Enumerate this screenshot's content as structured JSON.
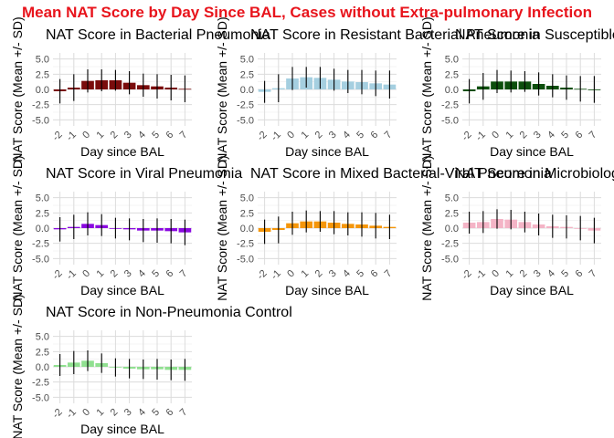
{
  "chart_data": {
    "title": "Mean NAT Score by Day Since BAL, Cases without Extra-pulmonary Infection",
    "title_color": "#e8141c",
    "type": "bar",
    "grid": true,
    "ylim": [
      -6,
      6
    ],
    "yticks": [
      -5,
      -2.5,
      0,
      2.5,
      5
    ],
    "ytick_labels": [
      "-5.0",
      "-2.5",
      "0.0",
      "2.5",
      "5.0"
    ],
    "x": [
      -2,
      -1,
      0,
      1,
      2,
      3,
      4,
      5,
      6,
      7
    ],
    "x_labels": [
      "-2",
      "-1",
      "0",
      "1",
      "2",
      "3",
      "4",
      "5",
      "6",
      "7"
    ],
    "panels": [
      {
        "title": "NAT Score in Bacterial Pneumonia",
        "xlabel": "Day since BAL",
        "ylabel": "NAT Score (Mean +/- SD)",
        "color": "#7a0c0c",
        "values": [
          -0.3,
          0.3,
          1.4,
          1.5,
          1.5,
          1.1,
          0.7,
          0.5,
          0.3,
          0.1
        ],
        "sd": [
          2.0,
          2.2,
          1.9,
          1.8,
          1.7,
          1.9,
          1.9,
          2.0,
          2.1,
          2.2
        ]
      },
      {
        "title": "NAT Score in Resistant Bacterial Pneumonia",
        "xlabel": "Day since BAL",
        "ylabel": "NAT Score (Mean +/- SD)",
        "color": "#a5cfe0",
        "values": [
          -0.4,
          0.2,
          1.8,
          2.0,
          1.9,
          1.6,
          1.3,
          1.2,
          1.0,
          0.8
        ],
        "sd": [
          1.8,
          2.3,
          1.9,
          1.7,
          1.8,
          1.8,
          1.9,
          2.0,
          2.1,
          2.3
        ]
      },
      {
        "title": "NAT Score in Susceptible Pneumonia",
        "xlabel": "Day since BAL",
        "ylabel": "NAT Score (Mean +/- SD)",
        "color": "#0d4f0d",
        "values": [
          -0.3,
          0.5,
          1.3,
          1.3,
          1.3,
          0.9,
          0.6,
          0.3,
          0.1,
          0.0
        ],
        "sd": [
          2.0,
          2.2,
          1.9,
          1.8,
          1.7,
          1.9,
          1.9,
          2.0,
          2.1,
          2.2
        ]
      },
      {
        "title": "NAT Score in Viral Pneumonia",
        "xlabel": "Day since BAL",
        "ylabel": "NAT Score (Mean +/- SD)",
        "color": "#8a08e0",
        "values": [
          -0.2,
          0.2,
          0.7,
          0.5,
          0.0,
          -0.2,
          -0.4,
          -0.4,
          -0.5,
          -0.7
        ],
        "sd": [
          2.0,
          2.0,
          1.9,
          1.8,
          1.7,
          1.8,
          1.9,
          2.0,
          2.0,
          2.1
        ]
      },
      {
        "title": "NAT Score in Mixed Bacterial-Viral Pneumonia",
        "xlabel": "Day since BAL",
        "ylabel": "NAT Score (Mean +/- SD)",
        "color": "#f5960a",
        "values": [
          -0.6,
          -0.3,
          0.8,
          1.1,
          1.1,
          0.9,
          0.7,
          0.6,
          0.4,
          0.2
        ],
        "sd": [
          2.0,
          2.2,
          1.9,
          1.8,
          1.7,
          1.9,
          1.9,
          2.0,
          2.1,
          2.0
        ]
      },
      {
        "title": "NAT Score in Microbiology-negative Pneumonia",
        "xlabel": "Day since BAL",
        "ylabel": "NAT Score (Mean +/- SD)",
        "color": "#f4b4c6",
        "values": [
          0.9,
          1.0,
          1.5,
          1.4,
          1.0,
          0.6,
          0.3,
          0.2,
          0.0,
          -0.4
        ],
        "sd": [
          1.8,
          1.8,
          1.6,
          1.6,
          1.7,
          1.8,
          1.9,
          1.9,
          2.0,
          2.1
        ]
      },
      {
        "title": "NAT Score in Non-Pneumonia Control",
        "xlabel": "Day since BAL",
        "ylabel": "NAT Score (Mean +/- SD)",
        "color": "#90e090",
        "values": [
          0.3,
          0.7,
          1.0,
          0.6,
          -0.1,
          -0.3,
          -0.4,
          -0.4,
          -0.5,
          -0.5
        ],
        "sd": [
          1.8,
          1.9,
          1.7,
          1.6,
          1.5,
          1.6,
          1.6,
          1.7,
          1.7,
          1.8
        ]
      }
    ]
  }
}
